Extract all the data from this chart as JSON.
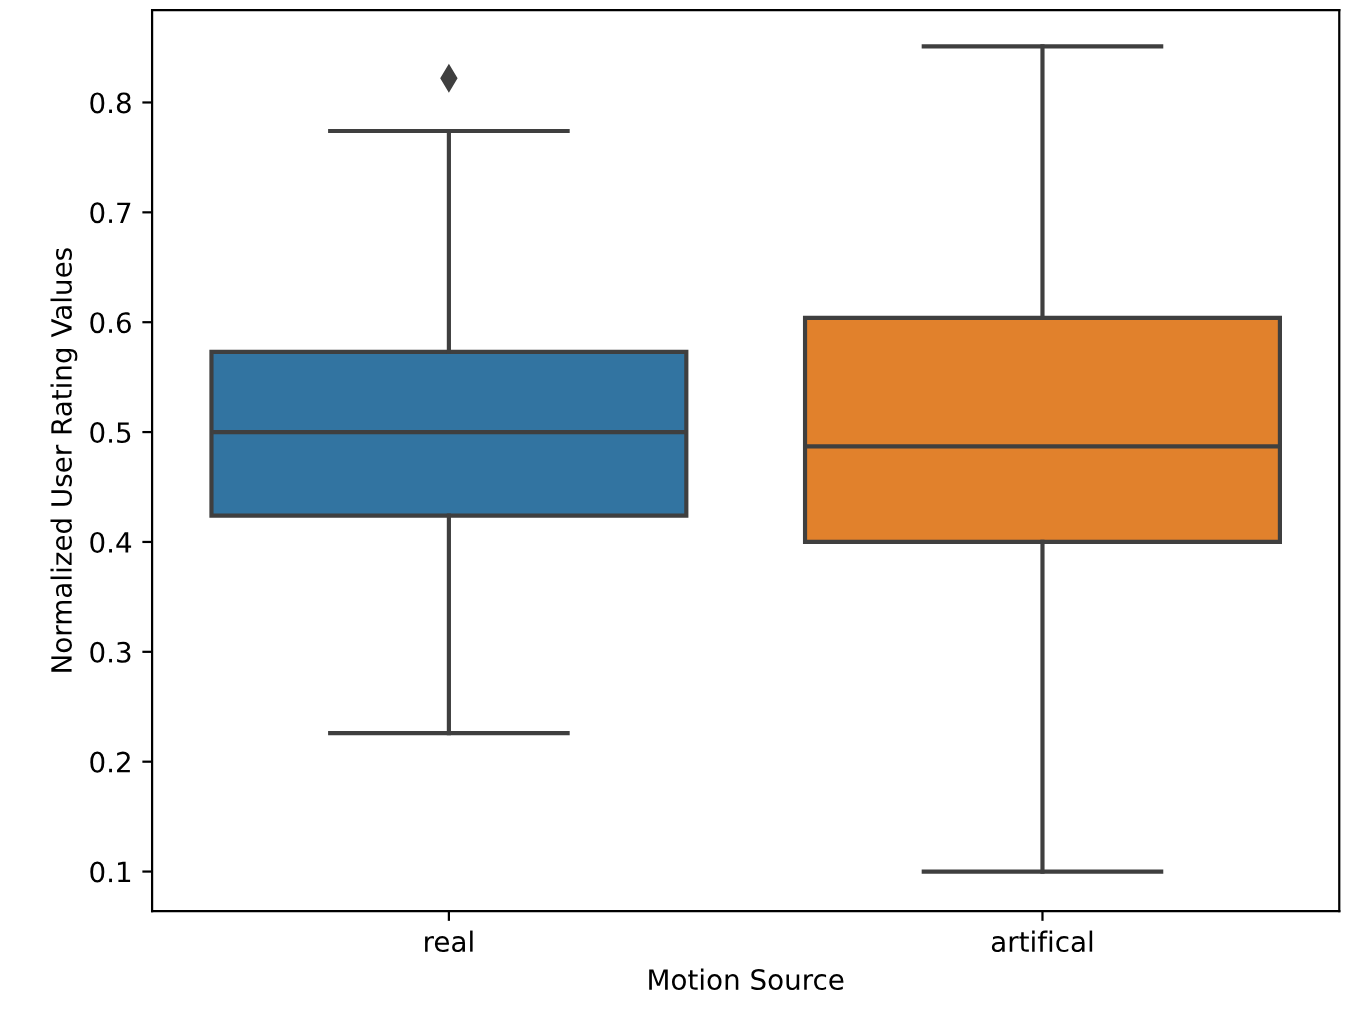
{
  "chart_data": {
    "type": "box",
    "xlabel": "Motion Source",
    "ylabel": "Normalized User Rating Values",
    "categories": [
      "real",
      "artifical"
    ],
    "colors": [
      "#3274a1",
      "#e1812c"
    ],
    "boxes": [
      {
        "low": 0.226,
        "q1": 0.424,
        "median": 0.5,
        "q3": 0.573,
        "high": 0.774,
        "outliers": [
          0.822
        ]
      },
      {
        "low": 0.1,
        "q1": 0.4,
        "median": 0.487,
        "q3": 0.604,
        "high": 0.851
      }
    ],
    "ylim": [
      0.064,
      0.884
    ],
    "yticks": [
      0.1,
      0.2,
      0.3,
      0.4,
      0.5,
      0.6,
      0.7,
      0.8
    ],
    "marker": "diamond",
    "grid": false
  }
}
